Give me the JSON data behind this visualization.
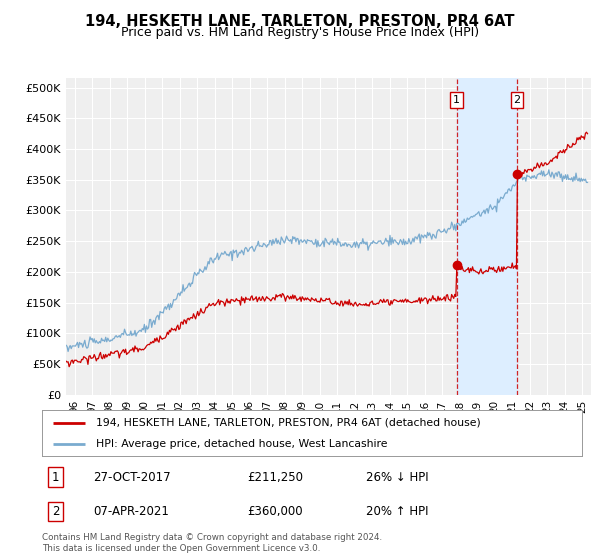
{
  "title": "194, HESKETH LANE, TARLETON, PRESTON, PR4 6AT",
  "subtitle": "Price paid vs. HM Land Registry's House Price Index (HPI)",
  "ylabel_ticks": [
    "£0",
    "£50K",
    "£100K",
    "£150K",
    "£200K",
    "£250K",
    "£300K",
    "£350K",
    "£400K",
    "£450K",
    "£500K"
  ],
  "ytick_values": [
    0,
    50000,
    100000,
    150000,
    200000,
    250000,
    300000,
    350000,
    400000,
    450000,
    500000
  ],
  "ylim": [
    0,
    515000
  ],
  "xlim_start": 1995.5,
  "xlim_end": 2025.5,
  "xtick_years": [
    1996,
    1997,
    1998,
    1999,
    2000,
    2001,
    2002,
    2003,
    2004,
    2005,
    2006,
    2007,
    2008,
    2009,
    2010,
    2011,
    2012,
    2013,
    2014,
    2015,
    2016,
    2017,
    2018,
    2019,
    2020,
    2021,
    2022,
    2023,
    2024,
    2025
  ],
  "xtick_labels": [
    "96",
    "97",
    "98",
    "99",
    "00",
    "01",
    "02",
    "03",
    "04",
    "05",
    "06",
    "07",
    "08",
    "09",
    "10",
    "11",
    "12",
    "13",
    "14",
    "15",
    "16",
    "17",
    "18",
    "19",
    "20",
    "21",
    "22",
    "23",
    "24",
    "25"
  ],
  "legend_line1": "194, HESKETH LANE, TARLETON, PRESTON, PR4 6AT (detached house)",
  "legend_line2": "HPI: Average price, detached house, West Lancashire",
  "annotation1_date": "27-OCT-2017",
  "annotation1_price": "£211,250",
  "annotation1_hpi": "26% ↓ HPI",
  "annotation2_date": "07-APR-2021",
  "annotation2_price": "£360,000",
  "annotation2_hpi": "20% ↑ HPI",
  "sale1_x": 2017.82,
  "sale1_y": 211250,
  "sale2_x": 2021.27,
  "sale2_y": 360000,
  "footer": "Contains HM Land Registry data © Crown copyright and database right 2024.\nThis data is licensed under the Open Government Licence v3.0.",
  "line_color_sold": "#cc0000",
  "line_color_hpi": "#7aabcf",
  "background_color": "#ffffff",
  "plot_bg_color": "#efefef",
  "grid_color": "#ffffff",
  "span_color": "#ddeeff"
}
